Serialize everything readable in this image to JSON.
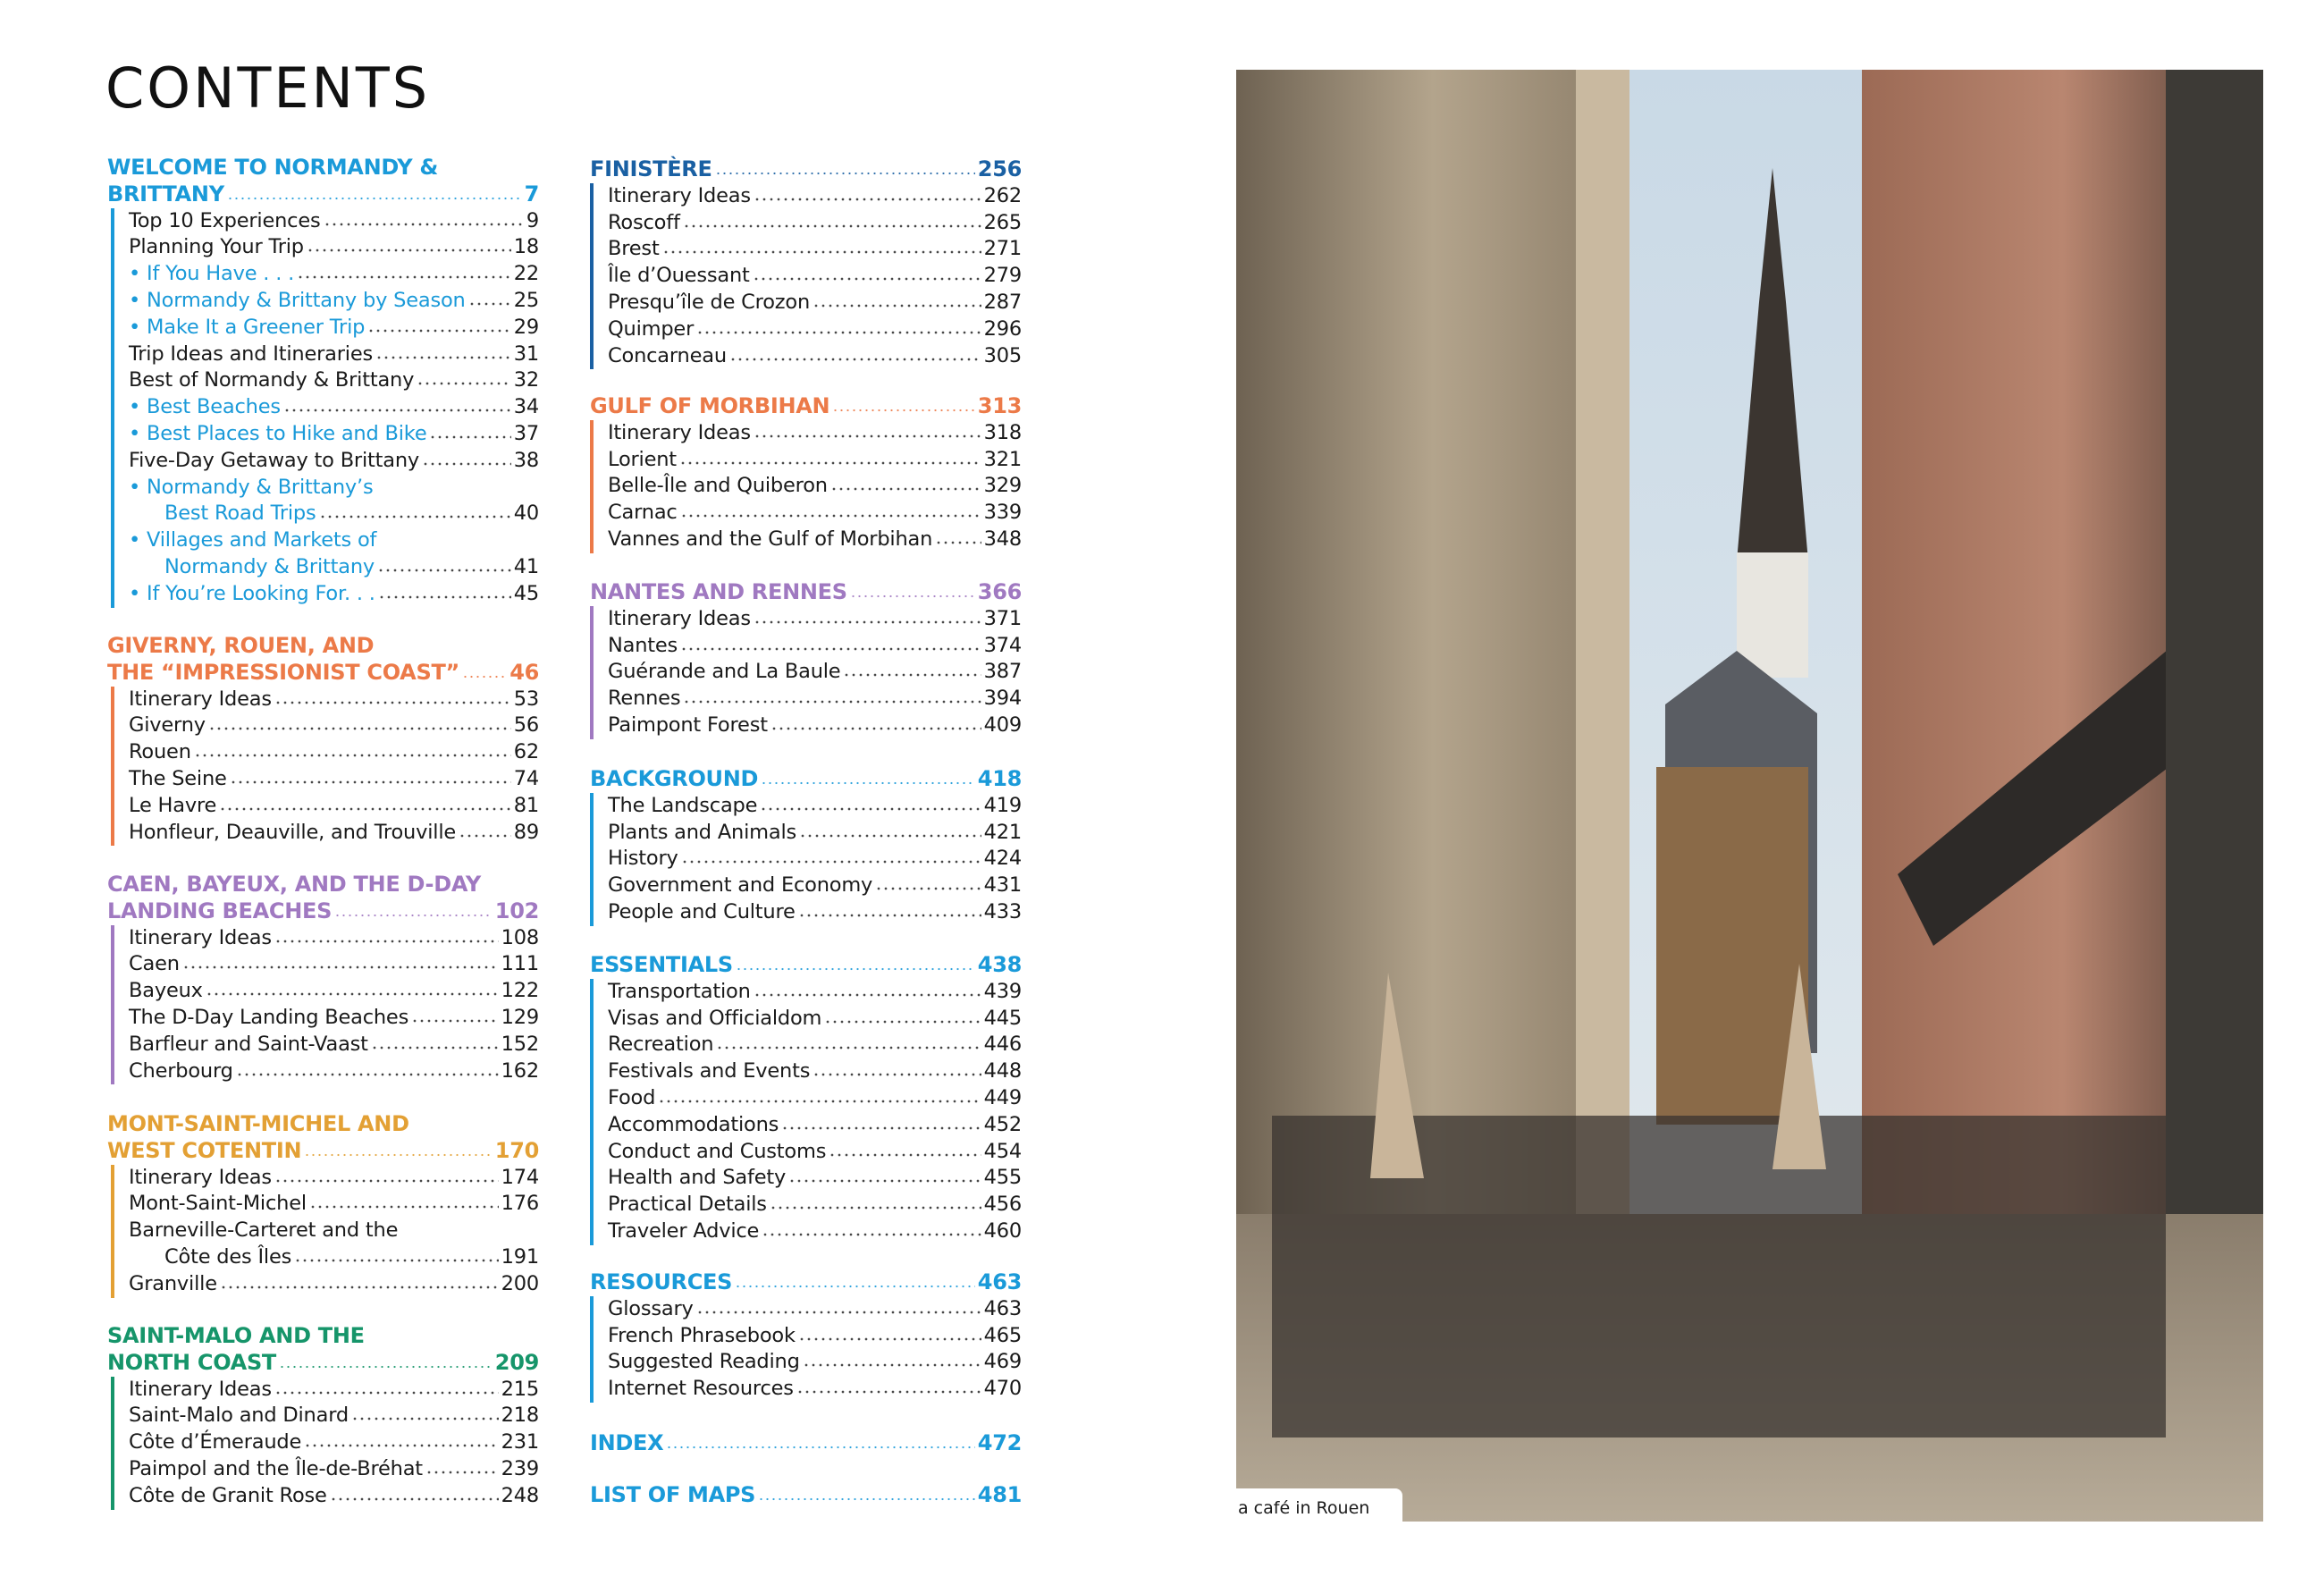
{
  "page_title": "CONTENTS",
  "photo_caption": "a café in Rouen",
  "colors": {
    "welcome": "#1a9ad9",
    "giverny": "#ec7a48",
    "caen": "#a079c1",
    "mont": "#e3a034",
    "saintmalo": "#16956a",
    "finistere": "#1a60a3",
    "morbihan": "#ec7a48",
    "nantes": "#a079c1",
    "cyan": "#1a9ad9"
  },
  "columns": [
    [
      {
        "heading": [
          "WELCOME TO NORMANDY &",
          "BRITTANY"
        ],
        "page": "7",
        "color": "#1a9ad9",
        "items": [
          {
            "label": [
              "Top 10 Experiences"
            ],
            "page": "9"
          },
          {
            "label": [
              "Planning Your Trip"
            ],
            "page": "18"
          },
          {
            "label": [
              "• If You Have . . ."
            ],
            "page": "22",
            "highlight": true
          },
          {
            "label": [
              "• Normandy & Brittany by Season"
            ],
            "page": "25",
            "highlight": true
          },
          {
            "label": [
              "• Make It a Greener Trip"
            ],
            "page": "29",
            "highlight": true
          },
          {
            "label": [
              "Trip Ideas and Itineraries"
            ],
            "page": "31"
          },
          {
            "label": [
              "Best of Normandy & Brittany"
            ],
            "page": "32"
          },
          {
            "label": [
              "• Best Beaches"
            ],
            "page": "34",
            "highlight": true
          },
          {
            "label": [
              "• Best Places to Hike and Bike"
            ],
            "page": "37",
            "highlight": true
          },
          {
            "label": [
              "Five-Day Getaway to Brittany"
            ],
            "page": "38"
          },
          {
            "label": [
              "• Normandy & Brittany’s",
              "Best Road Trips"
            ],
            "page": "40",
            "highlight": true
          },
          {
            "label": [
              "• Villages and Markets of",
              "Normandy & Brittany"
            ],
            "page": "41",
            "highlight": true
          },
          {
            "label": [
              "• If You’re Looking For. . ."
            ],
            "page": "45",
            "highlight": true
          }
        ]
      },
      {
        "heading": [
          "GIVERNY, ROUEN, AND",
          "THE “IMPRESSIONIST COAST”"
        ],
        "page": "46",
        "color": "#ec7a48",
        "items": [
          {
            "label": [
              "Itinerary Ideas"
            ],
            "page": "53"
          },
          {
            "label": [
              "Giverny"
            ],
            "page": "56"
          },
          {
            "label": [
              "Rouen"
            ],
            "page": "62"
          },
          {
            "label": [
              "The Seine"
            ],
            "page": "74"
          },
          {
            "label": [
              "Le Havre"
            ],
            "page": "81"
          },
          {
            "label": [
              "Honfleur, Deauville, and Trouville"
            ],
            "page": "89"
          }
        ]
      },
      {
        "heading": [
          "CAEN, BAYEUX, AND THE D-DAY",
          "LANDING BEACHES"
        ],
        "page": "102",
        "color": "#a079c1",
        "items": [
          {
            "label": [
              "Itinerary Ideas"
            ],
            "page": "108"
          },
          {
            "label": [
              "Caen"
            ],
            "page": "111"
          },
          {
            "label": [
              "Bayeux"
            ],
            "page": "122"
          },
          {
            "label": [
              "The D-Day Landing Beaches"
            ],
            "page": "129"
          },
          {
            "label": [
              "Barfleur and Saint-Vaast"
            ],
            "page": "152"
          },
          {
            "label": [
              "Cherbourg"
            ],
            "page": "162"
          }
        ]
      },
      {
        "heading": [
          "MONT-SAINT-MICHEL AND",
          "WEST COTENTIN"
        ],
        "page": "170",
        "color": "#e3a034",
        "items": [
          {
            "label": [
              "Itinerary Ideas"
            ],
            "page": "174"
          },
          {
            "label": [
              "Mont-Saint-Michel"
            ],
            "page": "176"
          },
          {
            "label": [
              "Barneville-Carteret and the",
              "Côte des Îles"
            ],
            "page": "191"
          },
          {
            "label": [
              "Granville"
            ],
            "page": "200"
          }
        ]
      },
      {
        "heading": [
          "SAINT-MALO AND THE",
          "NORTH COAST"
        ],
        "page": "209",
        "color": "#16956a",
        "items": [
          {
            "label": [
              "Itinerary Ideas"
            ],
            "page": "215"
          },
          {
            "label": [
              "Saint-Malo and Dinard"
            ],
            "page": "218"
          },
          {
            "label": [
              "Côte d’Émeraude"
            ],
            "page": "231"
          },
          {
            "label": [
              "Paimpol and the Île-de-Bréhat"
            ],
            "page": "239"
          },
          {
            "label": [
              "Côte de Granit Rose"
            ],
            "page": "248"
          }
        ]
      }
    ],
    [
      {
        "heading": [
          "FINISTÈRE"
        ],
        "page": "256",
        "color": "#1a60a3",
        "items": [
          {
            "label": [
              "Itinerary Ideas"
            ],
            "page": "262"
          },
          {
            "label": [
              "Roscoff"
            ],
            "page": "265"
          },
          {
            "label": [
              "Brest"
            ],
            "page": "271"
          },
          {
            "label": [
              "Île d’Ouessant"
            ],
            "page": "279"
          },
          {
            "label": [
              "Presqu’île de Crozon"
            ],
            "page": "287"
          },
          {
            "label": [
              "Quimper"
            ],
            "page": "296"
          },
          {
            "label": [
              "Concarneau"
            ],
            "page": "305"
          }
        ]
      },
      {
        "heading": [
          "GULF OF MORBIHAN"
        ],
        "page": "313",
        "color": "#ec7a48",
        "items": [
          {
            "label": [
              "Itinerary Ideas"
            ],
            "page": "318"
          },
          {
            "label": [
              "Lorient"
            ],
            "page": "321"
          },
          {
            "label": [
              "Belle-Île and Quiberon"
            ],
            "page": "329"
          },
          {
            "label": [
              "Carnac"
            ],
            "page": "339"
          },
          {
            "label": [
              "Vannes and the Gulf of Morbihan"
            ],
            "page": "348"
          }
        ]
      },
      {
        "heading": [
          "NANTES AND RENNES"
        ],
        "page": "366",
        "color": "#a079c1",
        "items": [
          {
            "label": [
              "Itinerary Ideas"
            ],
            "page": "371"
          },
          {
            "label": [
              "Nantes"
            ],
            "page": "374"
          },
          {
            "label": [
              "Guérande and La Baule"
            ],
            "page": "387"
          },
          {
            "label": [
              "Rennes"
            ],
            "page": "394"
          },
          {
            "label": [
              "Paimpont Forest"
            ],
            "page": "409"
          }
        ]
      },
      {
        "heading": [
          "BACKGROUND"
        ],
        "page": "418",
        "color": "#1a9ad9",
        "items": [
          {
            "label": [
              "The Landscape"
            ],
            "page": "419"
          },
          {
            "label": [
              "Plants and Animals"
            ],
            "page": "421"
          },
          {
            "label": [
              "History"
            ],
            "page": "424"
          },
          {
            "label": [
              "Government and Economy"
            ],
            "page": "431"
          },
          {
            "label": [
              "People and Culture"
            ],
            "page": "433"
          }
        ]
      },
      {
        "heading": [
          "ESSENTIALS"
        ],
        "page": "438",
        "color": "#1a9ad9",
        "items": [
          {
            "label": [
              "Transportation"
            ],
            "page": "439"
          },
          {
            "label": [
              "Visas and Officialdom"
            ],
            "page": "445"
          },
          {
            "label": [
              "Recreation"
            ],
            "page": "446"
          },
          {
            "label": [
              "Festivals and Events"
            ],
            "page": "448"
          },
          {
            "label": [
              "Food"
            ],
            "page": "449"
          },
          {
            "label": [
              "Accommodations"
            ],
            "page": "452"
          },
          {
            "label": [
              "Conduct and Customs"
            ],
            "page": "454"
          },
          {
            "label": [
              "Health and Safety"
            ],
            "page": "455"
          },
          {
            "label": [
              "Practical Details"
            ],
            "page": "456"
          },
          {
            "label": [
              "Traveler Advice"
            ],
            "page": "460"
          }
        ]
      },
      {
        "heading": [
          "RESOURCES"
        ],
        "page": "463",
        "color": "#1a9ad9",
        "items": [
          {
            "label": [
              "Glossary"
            ],
            "page": "463"
          },
          {
            "label": [
              "French Phrasebook"
            ],
            "page": "465"
          },
          {
            "label": [
              "Suggested Reading"
            ],
            "page": "469"
          },
          {
            "label": [
              "Internet Resources"
            ],
            "page": "470"
          }
        ]
      },
      {
        "heading": [
          "INDEX"
        ],
        "page": "472",
        "color": "#1a9ad9",
        "items": []
      },
      {
        "heading": [
          "LIST OF MAPS"
        ],
        "page": "481",
        "color": "#1a9ad9",
        "items": []
      }
    ]
  ]
}
